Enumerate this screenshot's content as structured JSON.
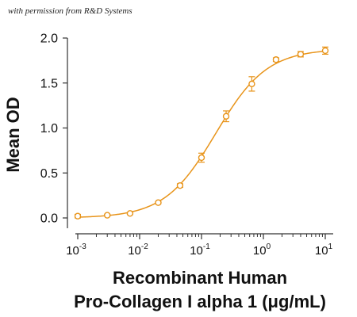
{
  "watermark": "with permission from R&D Systems",
  "colors": {
    "series": "#E8941A",
    "axis": "#333333"
  },
  "chart_data": {
    "type": "scatter",
    "subtype": "dose-response curve with error bars",
    "xlabel_line1": "Recombinant Human",
    "xlabel_line2": "Pro-Collagen I alpha 1 (μg/mL)",
    "ylabel": "Mean OD",
    "xscale": "log",
    "xlim": [
      0.001,
      10
    ],
    "ylim": [
      0.0,
      2.0
    ],
    "grid": false,
    "y_ticks": [
      {
        "value": 0.0,
        "label": "0.0"
      },
      {
        "value": 0.5,
        "label": "0.5"
      },
      {
        "value": 1.0,
        "label": "1.0"
      },
      {
        "value": 1.5,
        "label": "1.5"
      },
      {
        "value": 2.0,
        "label": "2.0"
      }
    ],
    "x_ticks": [
      {
        "value": 0.001,
        "base": "10",
        "exp": "-3"
      },
      {
        "value": 0.01,
        "base": "10",
        "exp": "-2"
      },
      {
        "value": 0.1,
        "base": "10",
        "exp": "-1"
      },
      {
        "value": 1,
        "base": "10",
        "exp": "0"
      },
      {
        "value": 10,
        "base": "10",
        "exp": "1"
      }
    ],
    "points": [
      {
        "x": 0.001,
        "y": 0.02,
        "err": 0.02
      },
      {
        "x": 0.003,
        "y": 0.03,
        "err": 0.01
      },
      {
        "x": 0.007,
        "y": 0.05,
        "err": 0.01
      },
      {
        "x": 0.02,
        "y": 0.17,
        "err": 0.01
      },
      {
        "x": 0.045,
        "y": 0.36,
        "err": 0.02
      },
      {
        "x": 0.1,
        "y": 0.67,
        "err": 0.05
      },
      {
        "x": 0.25,
        "y": 1.13,
        "err": 0.06
      },
      {
        "x": 0.65,
        "y": 1.49,
        "err": 0.08
      },
      {
        "x": 1.6,
        "y": 1.76,
        "err": 0.02
      },
      {
        "x": 4.0,
        "y": 1.82,
        "err": 0.03
      },
      {
        "x": 10.0,
        "y": 1.86,
        "err": 0.04
      }
    ],
    "fit": {
      "model": "4PL",
      "bottom": 0.0,
      "top": 1.88,
      "ec50": 0.17,
      "hill": 1.05
    }
  }
}
